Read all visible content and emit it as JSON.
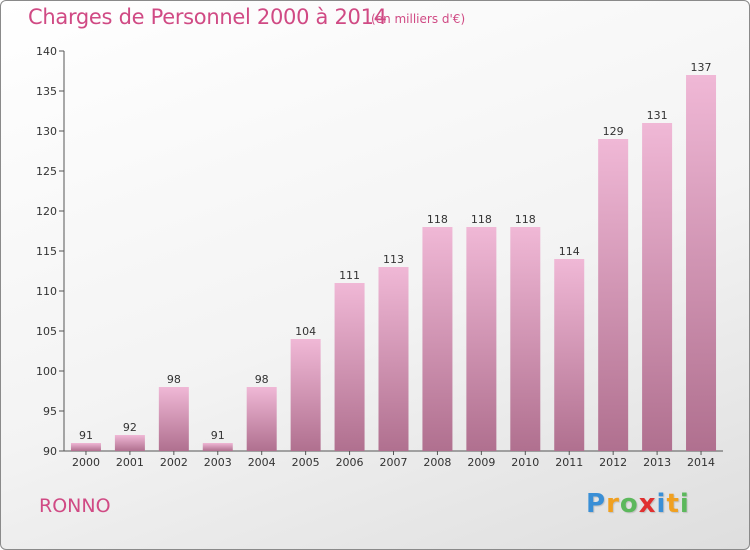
{
  "title": "Charges de Personnel 2000 à 2014",
  "subtitle": "(en milliers d'€)",
  "city": "RONNO",
  "logo": {
    "letters": [
      "P",
      "r",
      "o",
      "x",
      "i",
      "t",
      "i"
    ],
    "colors": [
      "#3a8fd6",
      "#f0a020",
      "#5cb85c",
      "#e03030",
      "#3a8fd6",
      "#f0a020",
      "#5cb85c"
    ]
  },
  "colors": {
    "title": "#d04a84",
    "bar_light": "#f0b8d6",
    "bar_dark": "#b0708f"
  },
  "chart_data": {
    "type": "bar",
    "categories": [
      "2000",
      "2001",
      "2002",
      "2003",
      "2004",
      "2005",
      "2006",
      "2007",
      "2008",
      "2009",
      "2010",
      "2011",
      "2012",
      "2013",
      "2014"
    ],
    "values": [
      91,
      92,
      98,
      91,
      98,
      104,
      111,
      113,
      118,
      118,
      118,
      114,
      129,
      131,
      137
    ],
    "ylim": [
      90,
      140
    ],
    "yticks": [
      90,
      95,
      100,
      105,
      110,
      115,
      120,
      125,
      130,
      135,
      140
    ],
    "grid": false,
    "title": "Charges de Personnel 2000 à 2014",
    "xlabel": "",
    "ylabel": ""
  }
}
